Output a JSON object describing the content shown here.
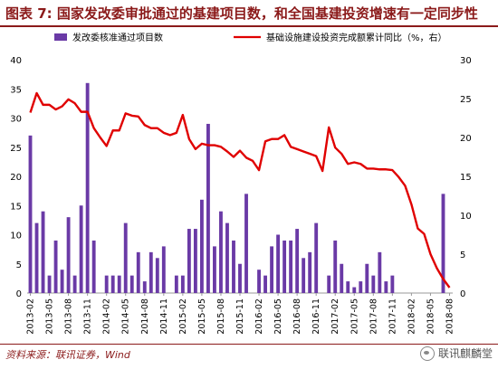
{
  "title": "图表 7: 国家发改委审批通过的基建项目数，和全国基建投资增速有一定同步性",
  "source": "资料来源：联讯证券，Wind",
  "watermark": "联讯麒麟堂",
  "colors": {
    "bar": "#6a3aa6",
    "line": "#e00000",
    "accent": "#8b1a1a"
  },
  "chart_data": {
    "type": "bar",
    "legend_placement": "top",
    "left_axis": {
      "ylim": [
        0,
        40
      ],
      "ticks": [
        0,
        5,
        10,
        15,
        20,
        25,
        30,
        35,
        40
      ]
    },
    "right_axis": {
      "ylim": [
        0,
        30
      ],
      "ticks": [
        0,
        5,
        10,
        15,
        20,
        25,
        30
      ]
    },
    "x_tick_labels": [
      "2013-02",
      "2013-05",
      "2013-08",
      "2013-11",
      "2014-02",
      "2014-05",
      "2014-08",
      "2014-11",
      "2015-02",
      "2015-05",
      "2015-08",
      "2015-11",
      "2016-02",
      "2016-05",
      "2016-08",
      "2016-11",
      "2017-02",
      "2017-05",
      "2017-08",
      "2017-11",
      "2018-02",
      "2018-05",
      "2018-08"
    ],
    "categories": [
      "2013-02",
      "2013-03",
      "2013-04",
      "2013-05",
      "2013-06",
      "2013-07",
      "2013-08",
      "2013-09",
      "2013-10",
      "2013-11",
      "2013-12",
      "2014-01",
      "2014-02",
      "2014-03",
      "2014-04",
      "2014-05",
      "2014-06",
      "2014-07",
      "2014-08",
      "2014-09",
      "2014-10",
      "2014-11",
      "2014-12",
      "2015-01",
      "2015-02",
      "2015-03",
      "2015-04",
      "2015-05",
      "2015-06",
      "2015-07",
      "2015-08",
      "2015-09",
      "2015-10",
      "2015-11",
      "2015-12",
      "2016-01",
      "2016-02",
      "2016-03",
      "2016-04",
      "2016-05",
      "2016-06",
      "2016-07",
      "2016-08",
      "2016-09",
      "2016-10",
      "2016-11",
      "2016-12",
      "2017-01",
      "2017-02",
      "2017-03",
      "2017-04",
      "2017-05",
      "2017-06",
      "2017-07",
      "2017-08",
      "2017-09",
      "2017-10",
      "2017-11",
      "2017-12",
      "2018-01",
      "2018-02",
      "2018-03",
      "2018-04",
      "2018-05",
      "2018-06",
      "2018-07",
      "2018-08"
    ],
    "series": [
      {
        "name": "发改委核准通过项目数",
        "type": "bar",
        "axis": "left",
        "values": [
          27,
          12,
          14,
          3,
          9,
          4,
          13,
          3,
          15,
          36,
          9,
          0,
          3,
          3,
          3,
          12,
          3,
          7,
          2,
          7,
          6,
          8,
          0,
          3,
          3,
          11,
          11,
          16,
          29,
          8,
          14,
          12,
          9,
          5,
          17,
          0,
          4,
          3,
          8,
          10,
          9,
          9,
          11,
          6,
          7,
          12,
          0,
          3,
          9,
          5,
          2,
          1,
          2,
          5,
          3,
          7,
          2,
          3,
          0,
          0,
          0,
          0,
          0,
          0,
          0,
          17,
          0
        ]
      },
      {
        "name": "基础设施建设投资完成额累计同比（%，右）",
        "type": "line",
        "axis": "right",
        "values": [
          23.2,
          25.7,
          24.2,
          24.2,
          23.6,
          24.0,
          24.9,
          24.4,
          23.3,
          23.3,
          21.2,
          20.0,
          18.9,
          20.9,
          20.9,
          23.1,
          22.8,
          22.7,
          21.6,
          21.2,
          21.2,
          20.6,
          20.3,
          20.6,
          22.9,
          19.8,
          18.5,
          19.2,
          19.0,
          19.0,
          18.8,
          18.2,
          17.5,
          18.3,
          17.4,
          17.0,
          15.8,
          19.5,
          19.8,
          19.8,
          20.3,
          18.8,
          18.5,
          18.2,
          17.9,
          17.6,
          15.7,
          21.3,
          18.7,
          17.9,
          16.6,
          16.8,
          16.6,
          16.0,
          16.0,
          15.9,
          15.9,
          15.8,
          14.9,
          13.8,
          11.4,
          8.3,
          7.6,
          5.0,
          3.2,
          1.8,
          0.7
        ]
      }
    ]
  }
}
